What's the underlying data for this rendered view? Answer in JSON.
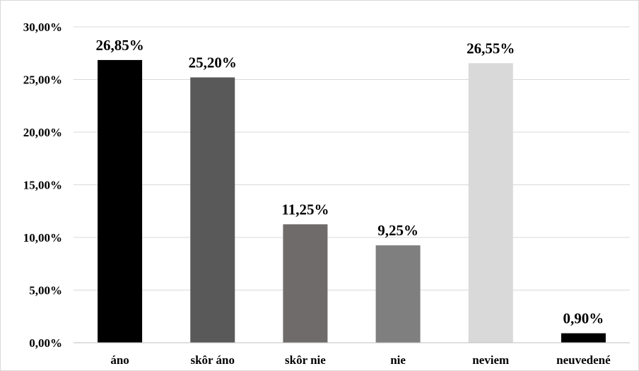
{
  "chart_data": {
    "type": "bar",
    "title": "",
    "xlabel": "",
    "ylabel": "",
    "categories": [
      "áno",
      "skôr áno",
      "skôr nie",
      "nie",
      "neviem",
      "neuvedené"
    ],
    "values": [
      26.85,
      25.2,
      11.25,
      9.25,
      26.55,
      0.9
    ],
    "data_labels": [
      "26,85%",
      "25,20%",
      "11,25%",
      "9,25%",
      "26,55%",
      "0,90%"
    ],
    "bar_colors": [
      "#000000",
      "#595959",
      "#6f6b6b",
      "#7f7f7f",
      "#d9d9d9",
      "#000000"
    ],
    "ylim": [
      0,
      30
    ],
    "yticks": [
      0,
      5,
      10,
      15,
      20,
      25,
      30
    ],
    "ytick_labels": [
      "0,00%",
      "5,00%",
      "10,00%",
      "15,00%",
      "20,00%",
      "25,00%",
      "30,00%"
    ],
    "grid": true,
    "legend": "none"
  }
}
